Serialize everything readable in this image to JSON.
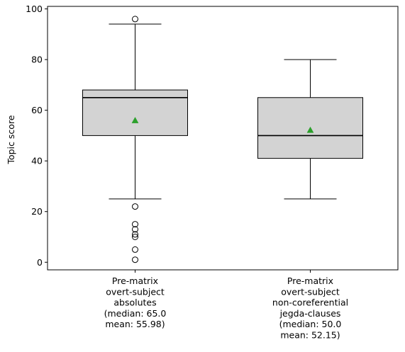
{
  "chart_data": {
    "type": "box",
    "ylabel": "Topic score",
    "xlabel": "",
    "ylim": [
      -3,
      101
    ],
    "yticks": [
      0,
      20,
      40,
      60,
      80,
      100
    ],
    "grid": false,
    "box_fill": "#d3d3d3",
    "mean_marker_color": "#2ca02c",
    "boxes": [
      {
        "label_lines": [
          "Pre-matrix",
          "overt-subject",
          "absolutes",
          "(median: 65.0",
          "mean: 55.98)"
        ],
        "whisker_low": 25,
        "q1": 50,
        "median": 65,
        "q3": 68,
        "whisker_high": 94,
        "mean": 55.98,
        "outliers": [
          96,
          22,
          15,
          13,
          11,
          10,
          5,
          1
        ]
      },
      {
        "label_lines": [
          "Pre-matrix",
          "overt-subject",
          "non-coreferential",
          "jegda-clauses",
          "(median: 50.0",
          "mean: 52.15)"
        ],
        "whisker_low": 25,
        "q1": 41,
        "median": 50,
        "q3": 65,
        "whisker_high": 80,
        "mean": 52.15,
        "outliers": []
      }
    ]
  }
}
